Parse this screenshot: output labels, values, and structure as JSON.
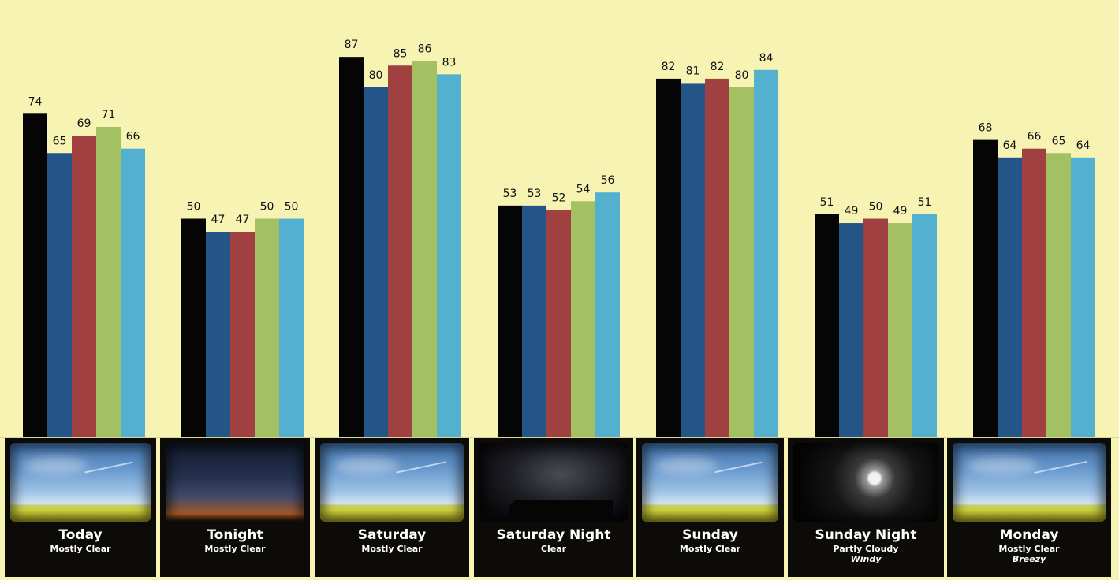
{
  "chart_data": {
    "type": "bar",
    "categories": [
      "Today",
      "Tonight",
      "Saturday",
      "Saturday Night",
      "Sunday",
      "Sunday Night",
      "Monday"
    ],
    "series": [
      {
        "values": [
          74,
          50,
          87,
          53,
          82,
          51,
          68
        ],
        "color": "#050505"
      },
      {
        "values": [
          65,
          47,
          80,
          53,
          81,
          49,
          64
        ],
        "color": "#245589"
      },
      {
        "values": [
          69,
          47,
          85,
          52,
          82,
          50,
          66
        ],
        "color": "#a04040"
      },
      {
        "values": [
          71,
          50,
          86,
          54,
          80,
          49,
          65
        ],
        "color": "#a3c163"
      },
      {
        "values": [
          66,
          50,
          83,
          56,
          84,
          51,
          64
        ],
        "color": "#54b0cf"
      }
    ],
    "ylim": [
      0,
      100
    ],
    "grid": false,
    "legend": "none",
    "background": "#f7f4b3"
  },
  "forecast_tiles": [
    {
      "name": "Today",
      "condition": "Mostly Clear",
      "extra": "",
      "image": "sky"
    },
    {
      "name": "Tonight",
      "condition": "Mostly Clear",
      "extra": "",
      "image": "dusk"
    },
    {
      "name": "Saturday",
      "condition": "Mostly Clear",
      "extra": "",
      "image": "sky"
    },
    {
      "name": "Saturday Night",
      "condition": "Clear",
      "extra": "",
      "image": "stars"
    },
    {
      "name": "Sunday",
      "condition": "Mostly Clear",
      "extra": "",
      "image": "sky"
    },
    {
      "name": "Sunday Night",
      "condition": "Partly Cloudy",
      "extra": "Windy",
      "image": "moon"
    },
    {
      "name": "Monday",
      "condition": "Mostly Clear",
      "extra": "Breezy",
      "image": "sky"
    }
  ]
}
